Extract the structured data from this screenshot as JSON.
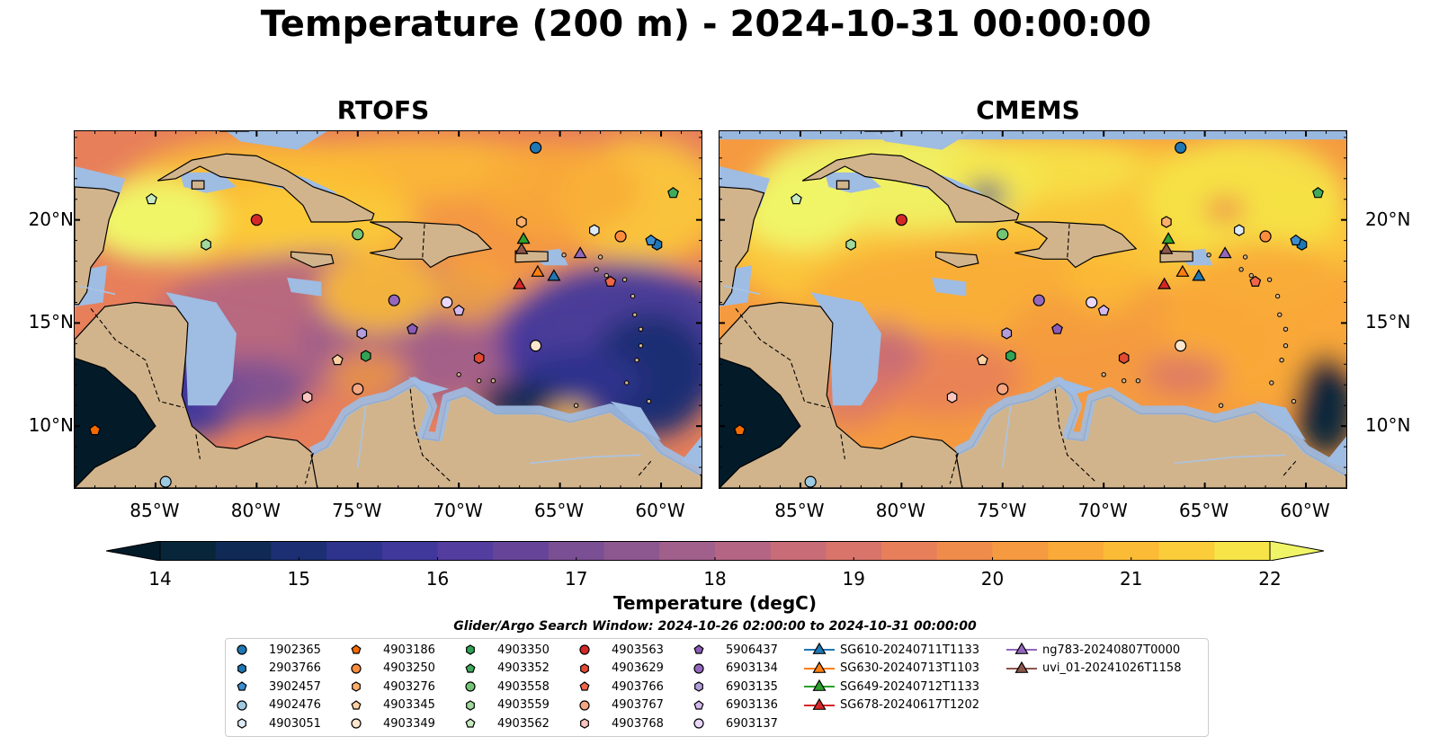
{
  "title": "Temperature (200 m) - 2024-10-31 00:00:00",
  "panels": [
    {
      "title": "RTOFS",
      "style": "rtofs"
    },
    {
      "title": "CMEMS",
      "style": "cmems"
    }
  ],
  "map_extent": {
    "lon": [
      -89,
      -58
    ],
    "lat": [
      7,
      24.3
    ]
  },
  "axes": {
    "lon_ticks": [
      {
        "value": -85,
        "label": "85°W"
      },
      {
        "value": -80,
        "label": "80°W"
      },
      {
        "value": -75,
        "label": "75°W"
      },
      {
        "value": -70,
        "label": "70°W"
      },
      {
        "value": -65,
        "label": "65°W"
      },
      {
        "value": -60,
        "label": "60°W"
      }
    ],
    "lat_ticks": [
      {
        "value": 20,
        "label": "20°N"
      },
      {
        "value": 15,
        "label": "15°N"
      },
      {
        "value": 10,
        "label": "10°N"
      }
    ]
  },
  "colorbar": {
    "label": "Temperature (degC)",
    "min": 14,
    "max": 22,
    "ticks": [
      {
        "value": 14,
        "label": "14"
      },
      {
        "value": 15,
        "label": "15"
      },
      {
        "value": 16,
        "label": "16"
      },
      {
        "value": 17,
        "label": "17"
      },
      {
        "value": 18,
        "label": "18"
      },
      {
        "value": 19,
        "label": "19"
      },
      {
        "value": 20,
        "label": "20"
      },
      {
        "value": 21,
        "label": "21"
      },
      {
        "value": 22,
        "label": "22"
      }
    ],
    "colors": [
      "#07263a",
      "#0f2a55",
      "#1d2f73",
      "#2e338c",
      "#41389c",
      "#533d9e",
      "#664599",
      "#7a4f93",
      "#8d5890",
      "#a15f8b",
      "#b46583",
      "#c86c78",
      "#d9746b",
      "#e77f5b",
      "#ef8c4c",
      "#f59a40",
      "#f9aa38",
      "#fbbb36",
      "#fbcd3a",
      "#f6e448",
      "#f0f567"
    ],
    "under_color": "#031a29",
    "over_color": "#f0f567"
  },
  "search_window": "Glider/Argo Search Window: 2024-10-26 02:00:00 to 2024-10-31 00:00:00",
  "land_color": "#d2b48c",
  "shallow_color": "#99b8e0",
  "legend": [
    {
      "label": "1902365",
      "marker": "circle",
      "color": "#1f77b4",
      "lon": -66.2,
      "lat": 23.5
    },
    {
      "label": "2903766",
      "marker": "hexagon",
      "color": "#1f77b4",
      "lon": -60.2,
      "lat": 18.8
    },
    {
      "label": "3902457",
      "marker": "pentagon",
      "color": "#3a8ecf",
      "lon": -60.5,
      "lat": 19.0
    },
    {
      "label": "4902476",
      "marker": "circle",
      "color": "#9ecae1",
      "lon": -84.5,
      "lat": 7.3
    },
    {
      "label": "4903051",
      "marker": "hexagon",
      "color": "#deebf7",
      "lon": -63.3,
      "lat": 19.5
    },
    {
      "label": "4903186",
      "marker": "pentagon",
      "color": "#f26b00",
      "lon": -88.0,
      "lat": 9.8
    },
    {
      "label": "4903250",
      "marker": "circle",
      "color": "#fd8d3c",
      "lon": -62.0,
      "lat": 19.2
    },
    {
      "label": "4903276",
      "marker": "hexagon",
      "color": "#fdae6b",
      "lon": -66.9,
      "lat": 19.9
    },
    {
      "label": "4903345",
      "marker": "pentagon",
      "color": "#fdd0a2",
      "lon": -76.0,
      "lat": 13.2
    },
    {
      "label": "4903349",
      "marker": "circle",
      "color": "#fee6ce",
      "lon": -66.2,
      "lat": 13.9
    },
    {
      "label": "4903350",
      "marker": "hexagon",
      "color": "#31a354",
      "lon": -74.6,
      "lat": 13.4
    },
    {
      "label": "4903352",
      "marker": "pentagon",
      "color": "#41ab5d",
      "lon": -59.4,
      "lat": 21.3
    },
    {
      "label": "4903558",
      "marker": "circle",
      "color": "#74c476",
      "lon": -75.0,
      "lat": 19.3
    },
    {
      "label": "4903559",
      "marker": "hexagon",
      "color": "#a1d99b",
      "lon": -82.5,
      "lat": 18.8
    },
    {
      "label": "4903562",
      "marker": "pentagon",
      "color": "#c7e9c0",
      "lon": -85.2,
      "lat": 21.0
    },
    {
      "label": "4903563",
      "marker": "circle",
      "color": "#d62728",
      "lon": -80.0,
      "lat": 20.0
    },
    {
      "label": "4903629",
      "marker": "hexagon",
      "color": "#e34a33",
      "lon": -69.0,
      "lat": 13.3
    },
    {
      "label": "4903766",
      "marker": "pentagon",
      "color": "#ef6548",
      "lon": -62.5,
      "lat": 17.0
    },
    {
      "label": "4903767",
      "marker": "circle",
      "color": "#f4a582",
      "lon": -75.0,
      "lat": 11.8
    },
    {
      "label": "4903768",
      "marker": "hexagon",
      "color": "#fcc5c0",
      "lon": -77.5,
      "lat": 11.4
    },
    {
      "label": "5906437",
      "marker": "pentagon",
      "color": "#8a5cb8",
      "lon": -72.3,
      "lat": 14.7
    },
    {
      "label": "6903134",
      "marker": "circle",
      "color": "#9467bd",
      "lon": -73.2,
      "lat": 16.1
    },
    {
      "label": "6903135",
      "marker": "hexagon",
      "color": "#b39ddb",
      "lon": -74.8,
      "lat": 14.5
    },
    {
      "label": "6903136",
      "marker": "pentagon",
      "color": "#d4b9f0",
      "lon": -70.0,
      "lat": 15.6
    },
    {
      "label": "6903137",
      "marker": "circle",
      "color": "#e9d8fb",
      "lon": -70.6,
      "lat": 16.0
    },
    {
      "label": "SG610-20240711T1133",
      "marker": "triangle",
      "color": "#1f77b4",
      "lon": -65.3,
      "lat": 17.3
    },
    {
      "label": "SG630-20240713T1103",
      "marker": "triangle",
      "color": "#ff7f0e",
      "lon": -66.1,
      "lat": 17.5
    },
    {
      "label": "SG649-20240712T1133",
      "marker": "triangle",
      "color": "#2ca02c",
      "lon": -66.8,
      "lat": 19.1
    },
    {
      "label": "SG678-20240617T1202",
      "marker": "triangle",
      "color": "#d62728",
      "lon": -67.0,
      "lat": 16.9
    },
    {
      "label": "ng783-20240807T0000",
      "marker": "triangle",
      "color": "#9467bd",
      "lon": -64.0,
      "lat": 18.4
    },
    {
      "label": "uvi_01-20241026T1158",
      "marker": "triangle",
      "color": "#8c564b",
      "lon": -66.9,
      "lat": 18.6
    }
  ]
}
